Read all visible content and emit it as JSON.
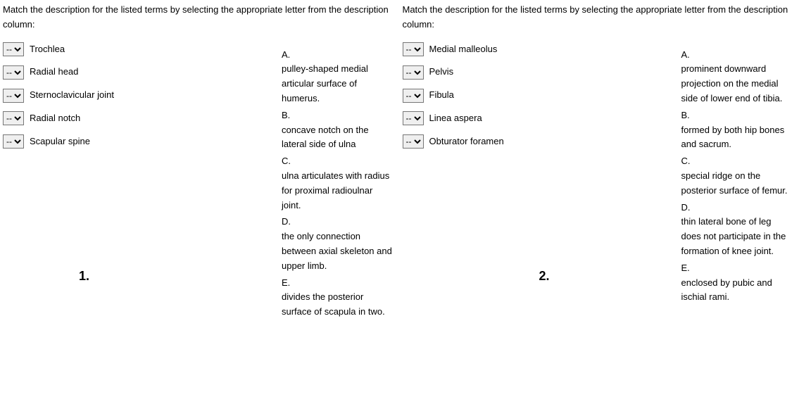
{
  "questions": [
    {
      "number": "1.",
      "instruction": "Match the description for the listed terms by selecting the appropriate letter from the description column:",
      "select_placeholder": "--",
      "terms": [
        "Trochlea",
        "Radial head",
        "Sternoclavicular joint",
        "Radial notch",
        "Scapular spine"
      ],
      "descriptions": [
        {
          "letter": "A.",
          "text": "pulley-shaped medial articular surface of humerus."
        },
        {
          "letter": "B.",
          "text": "concave notch on the lateral side of ulna"
        },
        {
          "letter": "C.",
          "text": "ulna articulates with radius for proximal radioulnar joint."
        },
        {
          "letter": "D.",
          "text": "the only connection between axial skeleton and upper limb."
        },
        {
          "letter": "E.",
          "text": "divides the posterior surface of scapula in two."
        }
      ]
    },
    {
      "number": "2.",
      "instruction": "Match the description for the listed terms by selecting the appropriate letter from the description column:",
      "select_placeholder": "--",
      "terms": [
        "Medial malleolus",
        "Pelvis",
        "Fibula",
        "Linea aspera",
        "Obturator foramen"
      ],
      "descriptions": [
        {
          "letter": "A.",
          "text": "prominent downward projection on the medial side of lower end of tibia."
        },
        {
          "letter": "B.",
          "text": "formed by both hip bones and sacrum."
        },
        {
          "letter": "C.",
          "text": "special ridge on the posterior surface of femur."
        },
        {
          "letter": "D.",
          "text": "thin lateral bone of leg does not participate in the formation of knee joint."
        },
        {
          "letter": "E.",
          "text": "enclosed by pubic and ischial rami."
        }
      ]
    }
  ],
  "styling": {
    "font_family": "Arial, sans-serif",
    "body_font_size": 13,
    "number_font_size": 18,
    "text_color": "#000000",
    "background_color": "#ffffff"
  }
}
